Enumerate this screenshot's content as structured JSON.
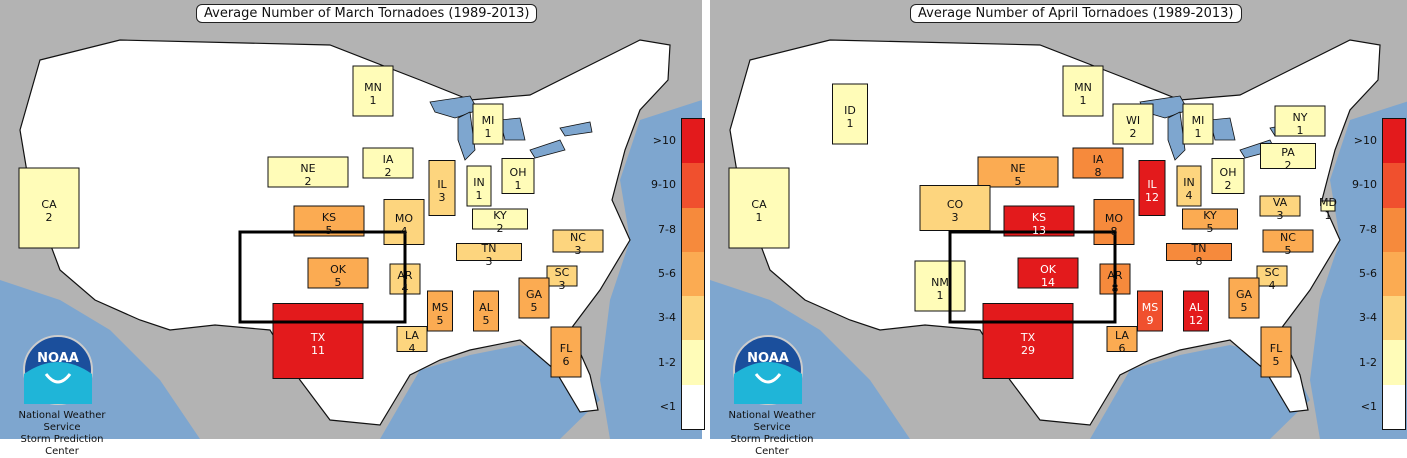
{
  "colors": {
    "ocean": "#7ea6cf",
    "land": "#b3b3b3",
    "border": "#111111",
    "white_state": "#ffffff"
  },
  "legend": {
    "classes": [
      {
        "label": ">10",
        "color": "#e31a1c"
      },
      {
        "label": "9-10",
        "color": "#f0502e"
      },
      {
        "label": "7-8",
        "color": "#f68a3c"
      },
      {
        "label": "5-6",
        "color": "#fbab52"
      },
      {
        "label": "3-4",
        "color": "#fdd57e"
      },
      {
        "label": "1-2",
        "color": "#fffcb8"
      },
      {
        "label": "<1",
        "color": "#ffffff"
      }
    ]
  },
  "credit": {
    "line1": "National Weather Service",
    "line2": "Storm Prediction Center",
    "logo_text": "NOAA"
  },
  "maps": [
    {
      "title": "Average Number of March Tornadoes (1989-2013)",
      "month": "March",
      "states": [
        {
          "abbr": "CA",
          "value": "2",
          "class": "1-2"
        },
        {
          "abbr": "NE",
          "value": "2",
          "class": "1-2"
        },
        {
          "abbr": "MN",
          "value": "1",
          "class": "1-2"
        },
        {
          "abbr": "IA",
          "value": "2",
          "class": "1-2"
        },
        {
          "abbr": "MI",
          "value": "1",
          "class": "1-2"
        },
        {
          "abbr": "IL",
          "value": "3",
          "class": "3-4"
        },
        {
          "abbr": "IN",
          "value": "1",
          "class": "1-2"
        },
        {
          "abbr": "OH",
          "value": "1",
          "class": "1-2"
        },
        {
          "abbr": "KS",
          "value": "5",
          "class": "5-6"
        },
        {
          "abbr": "MO",
          "value": "4",
          "class": "3-4"
        },
        {
          "abbr": "KY",
          "value": "2",
          "class": "1-2"
        },
        {
          "abbr": "NC",
          "value": "3",
          "class": "3-4"
        },
        {
          "abbr": "TN",
          "value": "3",
          "class": "3-4"
        },
        {
          "abbr": "OK",
          "value": "5",
          "class": "5-6"
        },
        {
          "abbr": "AR",
          "value": "4",
          "class": "3-4"
        },
        {
          "abbr": "SC",
          "value": "3",
          "class": "3-4"
        },
        {
          "abbr": "MS",
          "value": "5",
          "class": "5-6"
        },
        {
          "abbr": "AL",
          "value": "5",
          "class": "5-6"
        },
        {
          "abbr": "GA",
          "value": "5",
          "class": "5-6"
        },
        {
          "abbr": "TX",
          "value": "11",
          "class": ">10"
        },
        {
          "abbr": "LA",
          "value": "4",
          "class": "3-4"
        },
        {
          "abbr": "FL",
          "value": "6",
          "class": "5-6"
        }
      ]
    },
    {
      "title": "Average Number of April Tornadoes (1989-2013)",
      "month": "April",
      "states": [
        {
          "abbr": "CA",
          "value": "1",
          "class": "1-2"
        },
        {
          "abbr": "ID",
          "value": "1",
          "class": "1-2"
        },
        {
          "abbr": "MN",
          "value": "1",
          "class": "1-2"
        },
        {
          "abbr": "WI",
          "value": "2",
          "class": "1-2"
        },
        {
          "abbr": "MI",
          "value": "1",
          "class": "1-2"
        },
        {
          "abbr": "NY",
          "value": "1",
          "class": "1-2"
        },
        {
          "abbr": "PA",
          "value": "2",
          "class": "1-2"
        },
        {
          "abbr": "NE",
          "value": "5",
          "class": "5-6"
        },
        {
          "abbr": "IA",
          "value": "8",
          "class": "7-8"
        },
        {
          "abbr": "IL",
          "value": "12",
          "class": ">10"
        },
        {
          "abbr": "IN",
          "value": "4",
          "class": "3-4"
        },
        {
          "abbr": "OH",
          "value": "2",
          "class": "1-2"
        },
        {
          "abbr": "MD",
          "value": "1",
          "class": "1-2"
        },
        {
          "abbr": "CO",
          "value": "3",
          "class": "3-4"
        },
        {
          "abbr": "KS",
          "value": "13",
          "class": ">10"
        },
        {
          "abbr": "MO",
          "value": "8",
          "class": "7-8"
        },
        {
          "abbr": "KY",
          "value": "5",
          "class": "5-6"
        },
        {
          "abbr": "VA",
          "value": "3",
          "class": "3-4"
        },
        {
          "abbr": "NC",
          "value": "5",
          "class": "5-6"
        },
        {
          "abbr": "TN",
          "value": "8",
          "class": "7-8"
        },
        {
          "abbr": "NM",
          "value": "1",
          "class": "1-2"
        },
        {
          "abbr": "OK",
          "value": "14",
          "class": ">10"
        },
        {
          "abbr": "AR",
          "value": "8",
          "class": "7-8"
        },
        {
          "abbr": "SC",
          "value": "4",
          "class": "3-4"
        },
        {
          "abbr": "MS",
          "value": "9",
          "class": "9-10"
        },
        {
          "abbr": "AL",
          "value": "12",
          "class": ">10"
        },
        {
          "abbr": "GA",
          "value": "5",
          "class": "5-6"
        },
        {
          "abbr": "TX",
          "value": "29",
          "class": ">10"
        },
        {
          "abbr": "LA",
          "value": "6",
          "class": "5-6"
        },
        {
          "abbr": "FL",
          "value": "5",
          "class": "5-6"
        }
      ]
    }
  ]
}
